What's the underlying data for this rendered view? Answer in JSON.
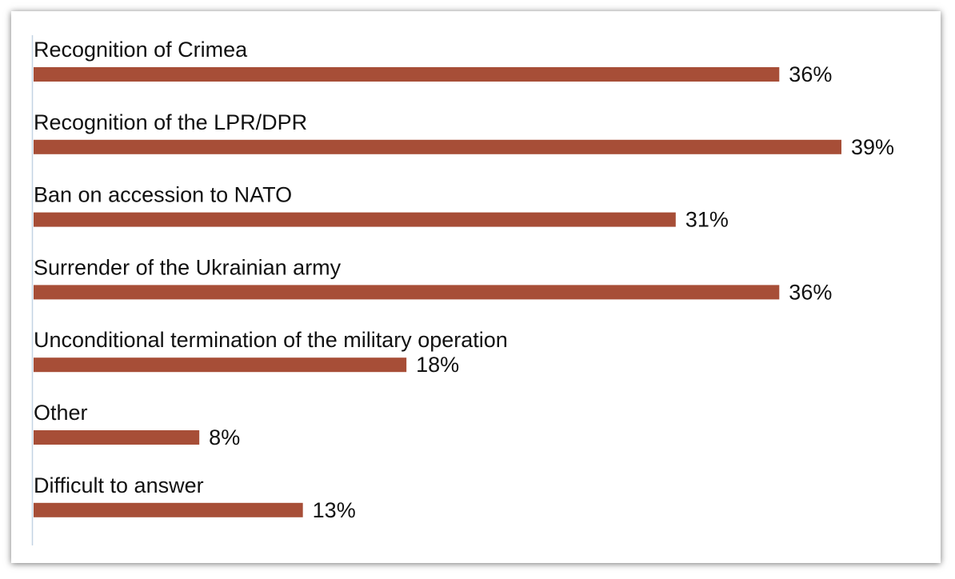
{
  "colors": {
    "bar": "#a74e37",
    "axis": "#c3d3e3",
    "text": "#111111"
  },
  "chart_data": {
    "type": "bar",
    "orientation": "horizontal",
    "categories": [
      "Recognition of Crimea",
      "Recognition of the LPR/DPR",
      "Ban on accession to NATO",
      "Surrender of the Ukrainian army",
      "Unconditional termination of the military operation",
      "Other",
      "Difficult to answer"
    ],
    "values": [
      36,
      39,
      31,
      36,
      18,
      8,
      13
    ],
    "value_labels": [
      "36%",
      "39%",
      "31%",
      "36%",
      "18%",
      "8%",
      "13%"
    ],
    "unit": "%",
    "xlim": [
      0,
      39
    ],
    "grid": false,
    "legend": "none",
    "title": "",
    "xlabel": "",
    "ylabel": ""
  }
}
